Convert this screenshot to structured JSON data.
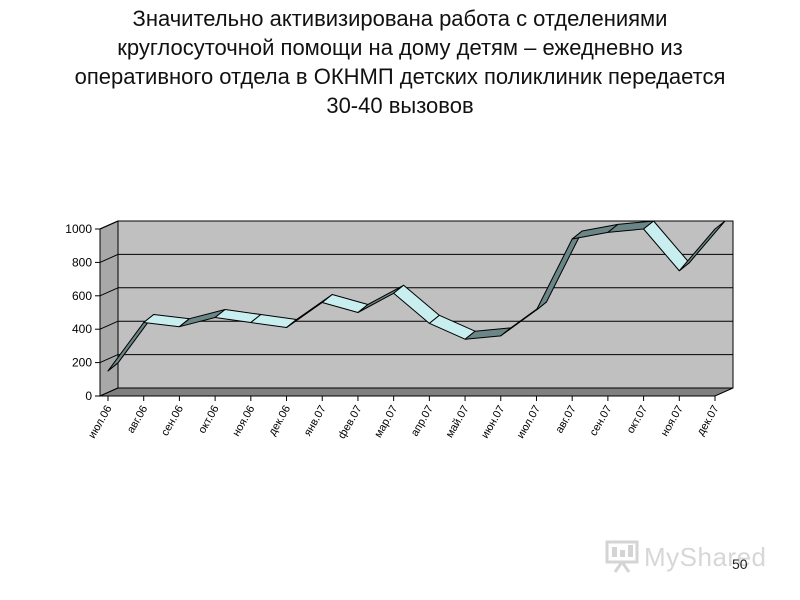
{
  "slide": {
    "title": "Значительно активизирована работа с отделениями круглосуточной помощи на дому детям – ежедневно из оперативного отдела в ОКНМП детских поликлиник передается 30-40 вызовов",
    "page_number": "50",
    "watermark_text": "MyShared"
  },
  "chart_data": {
    "type": "line",
    "style": "3d-ribbon",
    "categories": [
      "июл.06",
      "авг.06",
      "сен.06",
      "окт.06",
      "ноя.06",
      "дек.06",
      "янв.07",
      "фев.07",
      "мар.07",
      "апр.07",
      "май.07",
      "июн.07",
      "июл.07",
      "авг.07",
      "сен.07",
      "окт.07",
      "ноя.07",
      "дек.07"
    ],
    "series": [
      {
        "values": [
          150,
          440,
          415,
          470,
          440,
          410,
          560,
          500,
          615,
          435,
          340,
          360,
          515,
          940,
          980,
          1000,
          750,
          1000
        ]
      }
    ],
    "ylim": [
      0,
      1000
    ],
    "yticks": [
      0,
      200,
      400,
      600,
      800,
      1000
    ],
    "grid": true,
    "legend": "none",
    "colors": {
      "wall": "#c0c0c0",
      "floor": "#808080",
      "ribbon_top": "#c8eef0",
      "ribbon_side": "#6a8686",
      "grid": "#000000"
    }
  }
}
